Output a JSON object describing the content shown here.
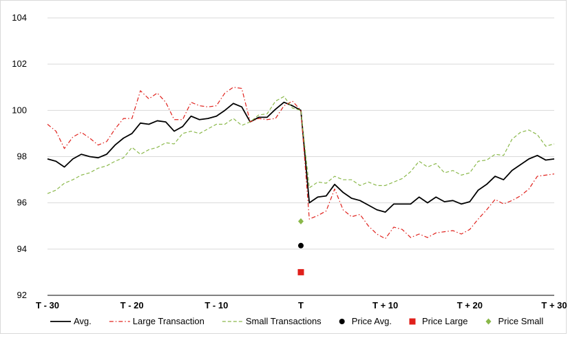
{
  "chart_data": {
    "type": "line",
    "title": "",
    "xlabel": "",
    "ylabel": "",
    "ylim": [
      92,
      104
    ],
    "yticks": [
      92,
      94,
      96,
      98,
      100,
      102,
      104
    ],
    "xlim": [
      -30,
      30
    ],
    "xticks": [
      {
        "value": -30,
        "label": "T - 30"
      },
      {
        "value": -20,
        "label": "T - 20"
      },
      {
        "value": -10,
        "label": "T - 10"
      },
      {
        "value": 0,
        "label": "T"
      },
      {
        "value": 10,
        "label": "T + 10"
      },
      {
        "value": 20,
        "label": "T + 20"
      },
      {
        "value": 30,
        "label": "T + 30"
      }
    ],
    "grid": "horizontal",
    "legend_position": "bottom",
    "x": [
      -30,
      -29,
      -28,
      -27,
      -26,
      -25,
      -24,
      -23,
      -22,
      -21,
      -20,
      -19,
      -18,
      -17,
      -16,
      -15,
      -14,
      -13,
      -12,
      -11,
      -10,
      -9,
      -8,
      -7,
      -6,
      -5,
      -4,
      -3,
      -2,
      -1,
      0,
      1,
      2,
      3,
      4,
      5,
      6,
      7,
      8,
      9,
      10,
      11,
      12,
      13,
      14,
      15,
      16,
      17,
      18,
      19,
      20,
      21,
      22,
      23,
      24,
      25,
      26,
      27,
      28,
      29,
      30
    ],
    "series": [
      {
        "name": "Avg.",
        "color": "#000000",
        "style": "solid",
        "values": [
          97.9,
          97.8,
          97.55,
          97.9,
          98.1,
          98.0,
          97.95,
          98.1,
          98.5,
          98.8,
          99.0,
          99.45,
          99.4,
          99.55,
          99.5,
          99.1,
          99.3,
          99.75,
          99.6,
          99.65,
          99.75,
          100.0,
          100.3,
          100.15,
          99.5,
          99.7,
          99.7,
          100.05,
          100.35,
          100.2,
          100.0,
          96.0,
          96.25,
          96.3,
          96.8,
          96.45,
          96.2,
          96.1,
          95.9,
          95.7,
          95.6,
          95.95,
          95.95,
          95.95,
          96.25,
          96.0,
          96.25,
          96.05,
          96.1,
          95.95,
          96.05,
          96.55,
          96.8,
          97.15,
          97.0,
          97.4,
          97.65,
          97.9,
          98.05,
          97.85,
          97.9
        ]
      },
      {
        "name": "Large Transaction",
        "color": "#e0201b",
        "style": "dashdot",
        "values": [
          99.4,
          99.1,
          98.35,
          98.85,
          99.05,
          98.8,
          98.5,
          98.65,
          99.2,
          99.65,
          99.65,
          100.85,
          100.5,
          100.75,
          100.35,
          99.6,
          99.6,
          100.35,
          100.2,
          100.15,
          100.2,
          100.75,
          101.0,
          100.95,
          99.5,
          99.65,
          99.6,
          99.65,
          100.2,
          100.4,
          100.0,
          95.3,
          95.45,
          95.65,
          96.6,
          95.7,
          95.4,
          95.5,
          95.0,
          94.65,
          94.45,
          94.95,
          94.85,
          94.5,
          94.65,
          94.5,
          94.7,
          94.75,
          94.8,
          94.65,
          94.85,
          95.3,
          95.7,
          96.15,
          95.95,
          96.1,
          96.3,
          96.6,
          97.15,
          97.2,
          97.25
        ]
      },
      {
        "name": "Small Transactions",
        "color": "#8ab84a",
        "style": "dashed",
        "values": [
          96.4,
          96.55,
          96.85,
          97.0,
          97.2,
          97.3,
          97.5,
          97.6,
          97.8,
          97.95,
          98.4,
          98.1,
          98.3,
          98.4,
          98.6,
          98.55,
          99.0,
          99.1,
          99.0,
          99.2,
          99.4,
          99.4,
          99.65,
          99.35,
          99.5,
          99.8,
          99.85,
          100.4,
          100.6,
          100.1,
          100.0,
          96.65,
          96.9,
          96.85,
          97.15,
          97.0,
          97.0,
          96.75,
          96.9,
          96.75,
          96.75,
          96.9,
          97.05,
          97.35,
          97.8,
          97.55,
          97.7,
          97.3,
          97.4,
          97.2,
          97.3,
          97.8,
          97.85,
          98.1,
          98.05,
          98.75,
          99.05,
          99.15,
          98.95,
          98.45,
          98.55
        ]
      },
      {
        "name": "Price Avg.",
        "color": "#000000",
        "marker": "circle",
        "points": [
          {
            "x": 0,
            "y": 94.15
          }
        ]
      },
      {
        "name": "Price Large",
        "color": "#e0201b",
        "marker": "square",
        "points": [
          {
            "x": 0,
            "y": 93.0
          }
        ]
      },
      {
        "name": "Price Small",
        "color": "#8ab84a",
        "marker": "diamond",
        "points": [
          {
            "x": 0,
            "y": 95.2
          }
        ]
      }
    ]
  }
}
